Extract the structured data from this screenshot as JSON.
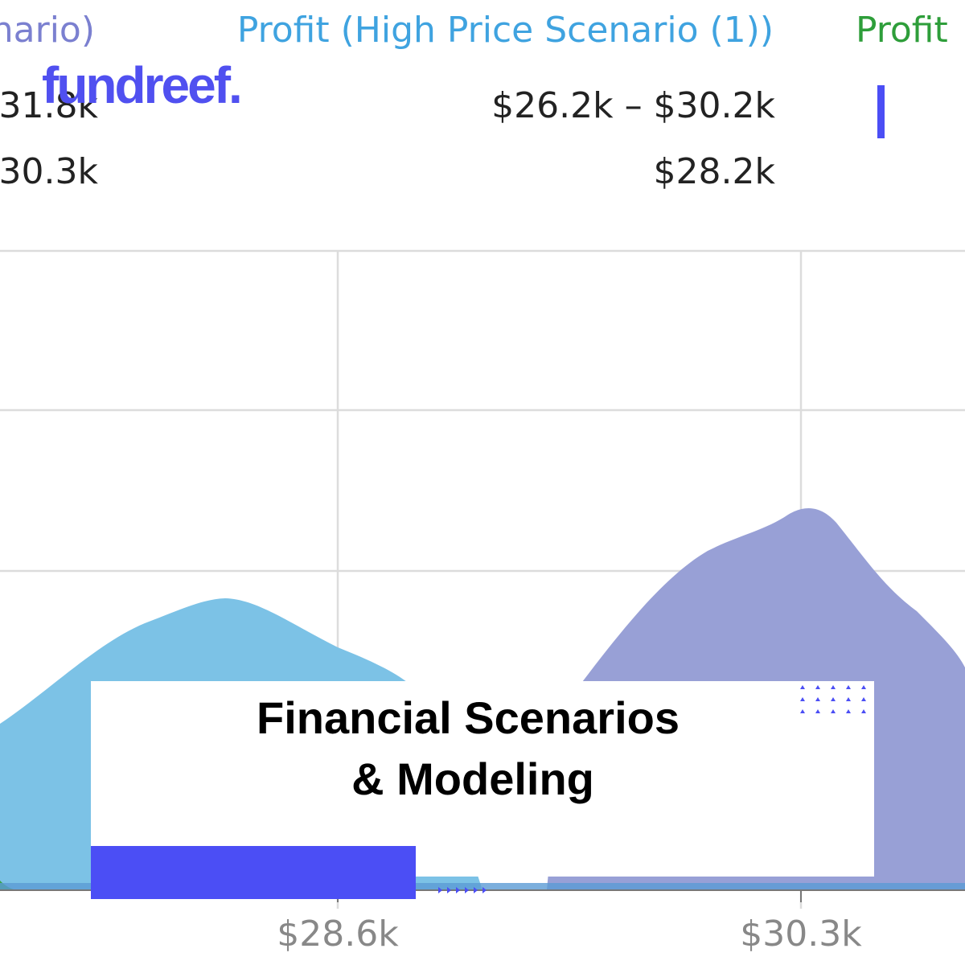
{
  "brand": "fundreef.",
  "legend": [
    "nario)",
    "Profit (High Price Scenario (1))",
    "Profit"
  ],
  "stats": {
    "range": [
      "31.8k",
      "$26.2k – $30.2k"
    ],
    "mean": [
      "30.3k",
      "$28.2k"
    ]
  },
  "x_axis_ticks": [
    "$28.6k",
    "$30.3k"
  ],
  "headline": [
    "Financial Scenarios",
    "& Modeling"
  ]
}
